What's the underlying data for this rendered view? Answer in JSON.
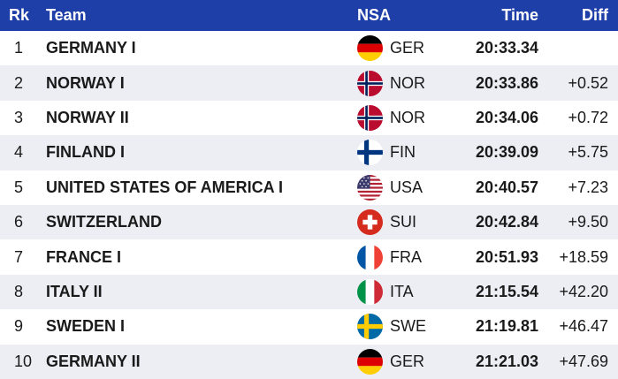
{
  "header": {
    "rk": "Rk",
    "team": "Team",
    "nsa": "NSA",
    "time": "Time",
    "diff": "Diff"
  },
  "rows": [
    {
      "rk": "1",
      "team": "GERMANY I",
      "flag": "germany-flag",
      "code": "GER",
      "time": "20:33.34",
      "diff": ""
    },
    {
      "rk": "2",
      "team": "NORWAY I",
      "flag": "norway-flag",
      "code": "NOR",
      "time": "20:33.86",
      "diff": "+0.52"
    },
    {
      "rk": "3",
      "team": "NORWAY II",
      "flag": "norway-flag",
      "code": "NOR",
      "time": "20:34.06",
      "diff": "+0.72"
    },
    {
      "rk": "4",
      "team": "FINLAND I",
      "flag": "finland-flag",
      "code": "FIN",
      "time": "20:39.09",
      "diff": "+5.75"
    },
    {
      "rk": "5",
      "team": "UNITED STATES OF AMERICA I",
      "flag": "usa-flag",
      "code": "USA",
      "time": "20:40.57",
      "diff": "+7.23"
    },
    {
      "rk": "6",
      "team": "SWITZERLAND",
      "flag": "switzerland-flag",
      "code": "SUI",
      "time": "20:42.84",
      "diff": "+9.50"
    },
    {
      "rk": "7",
      "team": "FRANCE I",
      "flag": "france-flag",
      "code": "FRA",
      "time": "20:51.93",
      "diff": "+18.59"
    },
    {
      "rk": "8",
      "team": "ITALY II",
      "flag": "italy-flag",
      "code": "ITA",
      "time": "21:15.54",
      "diff": "+42.20"
    },
    {
      "rk": "9",
      "team": "SWEDEN I",
      "flag": "sweden-flag",
      "code": "SWE",
      "time": "21:19.81",
      "diff": "+46.47"
    },
    {
      "rk": "10",
      "team": "GERMANY II",
      "flag": "germany-flag",
      "code": "GER",
      "time": "21:21.03",
      "diff": "+47.69"
    }
  ],
  "colors": {
    "header_bg": "#1e3ea8",
    "alt_row_bg": "#eceef4"
  }
}
